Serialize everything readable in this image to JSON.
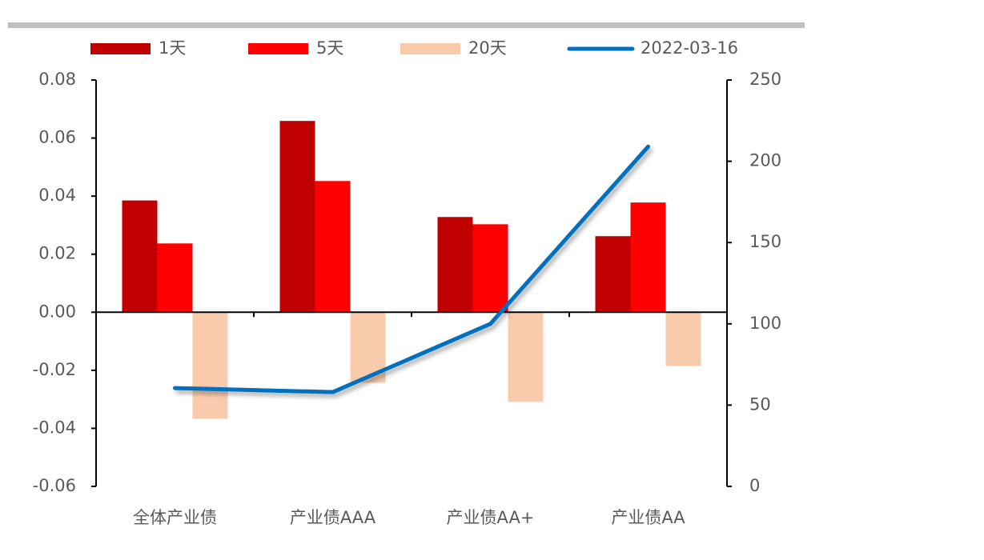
{
  "chart_data": {
    "type": "bar",
    "categories": [
      "全体产业债",
      "产业债AAA",
      "产业债AA+",
      "产业债AA"
    ],
    "series": [
      {
        "name": "1天",
        "color": "#C00000",
        "values": [
          0.0385,
          0.0659,
          0.0328,
          0.0262
        ]
      },
      {
        "name": "5天",
        "color": "#FF0000",
        "values": [
          0.0237,
          0.0452,
          0.0303,
          0.0378
        ]
      },
      {
        "name": "20天",
        "color": "#F8CBAD",
        "values": [
          -0.0367,
          -0.0243,
          -0.0309,
          -0.0185
        ]
      },
      {
        "name": "2022-03-16",
        "color": "#0070C0",
        "type": "line",
        "axis": "y2",
        "values": [
          60.5,
          58,
          100,
          209
        ]
      }
    ],
    "ylim": [
      -0.06,
      0.08
    ],
    "yticks": [
      {
        "value": -0.06,
        "label": "-0.06"
      },
      {
        "value": -0.04,
        "label": "-0.04"
      },
      {
        "value": -0.02,
        "label": "-0.02"
      },
      {
        "value": 0,
        "label": "0.00"
      },
      {
        "value": 0.02,
        "label": "0.02"
      },
      {
        "value": 0.04,
        "label": "0.04"
      },
      {
        "value": 0.06,
        "label": "0.06"
      },
      {
        "value": 0.08,
        "label": "0.08"
      }
    ],
    "y2lim": [
      0,
      250
    ],
    "y2ticks": [
      0,
      50,
      100,
      150,
      200,
      250
    ],
    "legend": "top"
  }
}
